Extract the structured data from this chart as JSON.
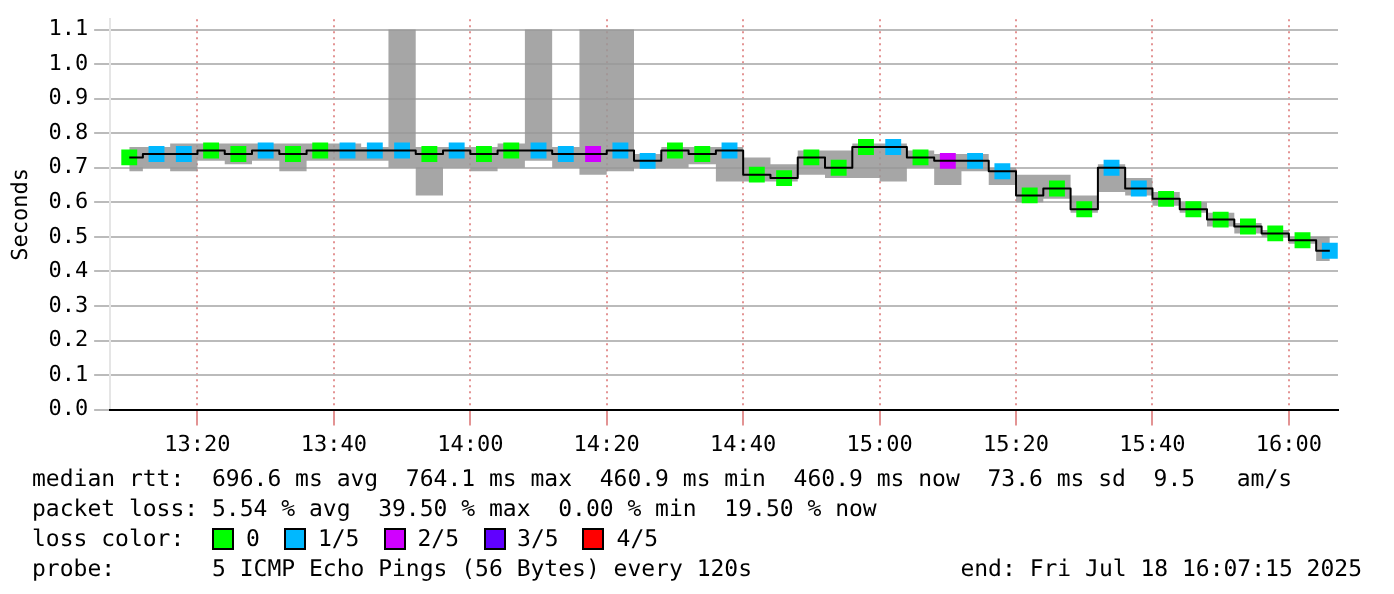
{
  "chart_data": {
    "type": "step",
    "ylabel": "Seconds",
    "x": [
      13.1667,
      13.2333,
      13.3,
      13.3667,
      13.4333,
      13.5,
      13.5667,
      13.6333,
      13.7,
      13.7667,
      13.8333,
      13.9,
      13.9667,
      14.0333,
      14.1,
      14.1667,
      14.2333,
      14.3,
      14.3667,
      14.4333,
      14.5,
      14.5667,
      14.6333,
      14.7,
      14.7667,
      14.8333,
      14.9,
      14.9667,
      15.0333,
      15.1,
      15.1667,
      15.2333,
      15.3,
      15.3667,
      15.4333,
      15.5,
      15.5667,
      15.6333,
      15.7,
      15.7667,
      15.8333,
      15.9,
      15.9667,
      16.0333,
      16.1
    ],
    "xlim": [
      13.12,
      16.12
    ],
    "xticks": [
      {
        "value": 13.3333,
        "label": "13:20"
      },
      {
        "value": 13.6667,
        "label": "13:40"
      },
      {
        "value": 14,
        "label": "14:00"
      },
      {
        "value": 14.3333,
        "label": "14:20"
      },
      {
        "value": 14.6667,
        "label": "14:40"
      },
      {
        "value": 15,
        "label": "15:00"
      },
      {
        "value": 15.3333,
        "label": "15:20"
      },
      {
        "value": 15.6667,
        "label": "15:40"
      },
      {
        "value": 16,
        "label": "16:00"
      }
    ],
    "ylim": [
      0,
      1.13
    ],
    "yticks": [
      {
        "value": 0,
        "label": "0.0"
      },
      0.1,
      0.2,
      0.3,
      0.4,
      0.5,
      0.6,
      0.7,
      0.8,
      0.9,
      {
        "value": 1,
        "label": "1.0"
      },
      1.1
    ],
    "grid": true,
    "legend": "bottom",
    "legend_title": "loss color:",
    "series": [
      {
        "color": "#000000",
        "values": [
          0.73,
          0.74,
          0.74,
          0.75,
          0.74,
          0.75,
          0.74,
          0.75,
          0.75,
          0.75,
          0.75,
          0.74,
          0.75,
          0.74,
          0.75,
          0.75,
          0.74,
          0.74,
          0.75,
          0.72,
          0.75,
          0.74,
          0.75,
          0.68,
          0.67,
          0.73,
          0.7,
          0.76,
          0.76,
          0.73,
          0.72,
          0.72,
          0.69,
          0.62,
          0.64,
          0.58,
          0.7,
          0.64,
          0.61,
          0.58,
          0.55,
          0.53,
          0.51,
          0.49,
          0.46
        ],
        "lower": [
          0.69,
          0.7,
          0.69,
          0.72,
          0.71,
          0.72,
          0.69,
          0.72,
          0.72,
          0.72,
          0.7,
          0.62,
          0.7,
          0.69,
          0.7,
          0.72,
          0.7,
          0.68,
          0.69,
          0.7,
          0.7,
          0.71,
          0.66,
          0.66,
          0.66,
          0.68,
          0.67,
          0.67,
          0.66,
          0.7,
          0.65,
          0.69,
          0.65,
          0.6,
          0.61,
          0.57,
          0.63,
          0.62,
          0.59,
          0.57,
          0.53,
          0.51,
          0.5,
          0.48,
          0.43
        ],
        "upper": [
          0.76,
          0.76,
          0.77,
          0.77,
          0.77,
          0.77,
          0.77,
          0.77,
          0.77,
          0.76,
          1.1,
          0.76,
          0.76,
          0.76,
          0.77,
          1.1,
          0.76,
          1.1,
          1.1,
          0.74,
          0.76,
          0.76,
          0.76,
          0.73,
          0.71,
          0.75,
          0.75,
          0.77,
          0.77,
          0.75,
          0.74,
          0.74,
          0.7,
          0.68,
          0.68,
          0.62,
          0.71,
          0.67,
          0.63,
          0.6,
          0.57,
          0.54,
          0.52,
          0.5,
          0.5
        ]
      },
      {
        "name": "0",
        "type": "scatter",
        "marker": "square",
        "color": "#00ff00",
        "values": [
          0.73,
          null,
          null,
          0.75,
          0.74,
          null,
          0.74,
          0.75,
          null,
          null,
          null,
          0.74,
          null,
          0.74,
          0.75,
          null,
          null,
          null,
          null,
          null,
          0.75,
          0.74,
          null,
          0.68,
          0.67,
          0.73,
          0.7,
          0.76,
          null,
          0.73,
          null,
          null,
          null,
          0.62,
          0.64,
          0.58,
          null,
          null,
          0.61,
          0.58,
          0.55,
          0.53,
          0.51,
          0.49,
          null
        ]
      },
      {
        "name": "1/5",
        "type": "scatter",
        "marker": "square",
        "color": "#00b8ff",
        "values": [
          null,
          0.74,
          0.74,
          null,
          null,
          0.75,
          null,
          null,
          0.75,
          0.75,
          0.75,
          null,
          0.75,
          null,
          null,
          0.75,
          0.74,
          null,
          0.75,
          0.72,
          null,
          null,
          0.75,
          null,
          null,
          null,
          null,
          null,
          0.76,
          null,
          null,
          0.72,
          0.69,
          null,
          null,
          null,
          0.7,
          0.64,
          null,
          null,
          null,
          null,
          null,
          null,
          0.46
        ]
      },
      {
        "name": "2/5",
        "type": "scatter",
        "marker": "square",
        "color": "#d000ff",
        "values": [
          null,
          null,
          null,
          null,
          null,
          null,
          null,
          null,
          null,
          null,
          null,
          null,
          null,
          null,
          null,
          null,
          null,
          0.74,
          null,
          null,
          null,
          null,
          null,
          null,
          null,
          null,
          null,
          null,
          null,
          null,
          0.72,
          null,
          null,
          null,
          null,
          null,
          null,
          null,
          null,
          null,
          null,
          null,
          null,
          null,
          null
        ]
      },
      {
        "name": "3/5",
        "type": "scatter",
        "marker": "square",
        "color": "#6000ff",
        "values": [
          null,
          null,
          null,
          null,
          null,
          null,
          null,
          null,
          null,
          null,
          null,
          null,
          null,
          null,
          null,
          null,
          null,
          null,
          null,
          null,
          null,
          null,
          null,
          null,
          null,
          null,
          null,
          null,
          null,
          null,
          null,
          null,
          null,
          null,
          null,
          null,
          null,
          null,
          null,
          null,
          null,
          null,
          null,
          null,
          null
        ]
      },
      {
        "name": "4/5",
        "type": "scatter",
        "marker": "square",
        "color": "#ff0000",
        "values": [
          null,
          null,
          null,
          null,
          null,
          null,
          null,
          null,
          null,
          null,
          null,
          null,
          null,
          null,
          null,
          null,
          null,
          null,
          null,
          null,
          null,
          null,
          null,
          null,
          null,
          null,
          null,
          null,
          null,
          null,
          null,
          null,
          null,
          null,
          null,
          null,
          null,
          null,
          null,
          null,
          null,
          null,
          null,
          null,
          null
        ]
      }
    ],
    "annotations": [
      "median rtt:  696.6 ms avg  764.1 ms max  460.9 ms min  460.9 ms now  73.6 ms sd  9.5   am/s",
      "packet loss: 5.54 % avg  39.50 % max  0.00 % min  19.50 % now",
      "probe:       5 ICMP Echo Pings (56 Bytes) every 120s",
      "end: Fri Jul 18 16:07:15 2025"
    ]
  }
}
